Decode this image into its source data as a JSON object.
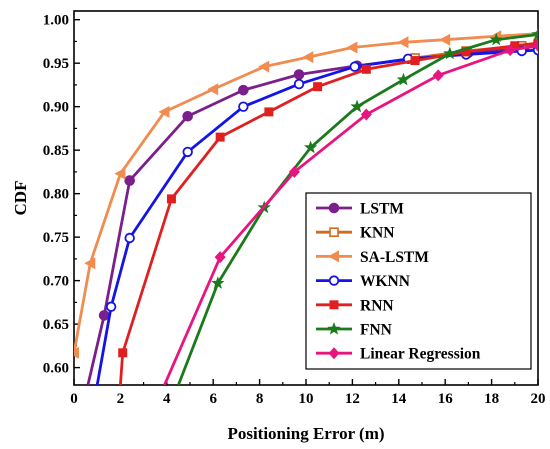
{
  "chart_data": {
    "type": "line",
    "xlabel": "Positioning Error (m)",
    "ylabel": "CDF",
    "xlim": [
      0,
      20
    ],
    "ylim": [
      0.58,
      1.01
    ],
    "x_ticks": [
      "0",
      "2",
      "4",
      "6",
      "8",
      "10",
      "12",
      "14",
      "16",
      "18",
      "20"
    ],
    "y_ticks": [
      "0.60",
      "0.65",
      "0.70",
      "0.75",
      "0.80",
      "0.85",
      "0.90",
      "0.95",
      "1.00"
    ],
    "grid": false,
    "legend_position": "bottom-right",
    "series": [
      {
        "name": "LSTM",
        "color": "#7a1f8c",
        "marker": "circle-filled",
        "x": [
          0.6,
          1.3,
          2.4,
          4.9,
          7.3,
          9.7,
          12.2,
          14.6,
          17.0,
          19.4,
          20.0
        ],
        "y": [
          0.58,
          0.66,
          0.815,
          0.889,
          0.919,
          0.937,
          0.947,
          0.955,
          0.962,
          0.968,
          0.969
        ]
      },
      {
        "name": "KNN",
        "color": "#d26a1e",
        "marker": "square-open",
        "x": [
          14.7,
          16.9,
          19.3,
          20.0
        ],
        "y": [
          0.956,
          0.964,
          0.97,
          0.971
        ]
      },
      {
        "name": "SA-LSTM",
        "color": "#f08c50",
        "marker": "triangle-left",
        "x": [
          0.0,
          0.7,
          2.0,
          3.9,
          6.0,
          8.2,
          10.1,
          12.0,
          14.2,
          16.0,
          18.2,
          20.0
        ],
        "y": [
          0.617,
          0.72,
          0.823,
          0.894,
          0.92,
          0.946,
          0.957,
          0.968,
          0.974,
          0.977,
          0.981,
          0.984
        ]
      },
      {
        "name": "WKNN",
        "color": "#1414e6",
        "marker": "circle-open",
        "x": [
          1.0,
          1.6,
          2.4,
          4.9,
          7.3,
          9.7,
          12.1,
          14.4,
          16.9,
          19.3,
          20.0
        ],
        "y": [
          0.58,
          0.67,
          0.749,
          0.848,
          0.9,
          0.926,
          0.946,
          0.955,
          0.96,
          0.964,
          0.965
        ]
      },
      {
        "name": "RNN",
        "color": "#e02020",
        "marker": "square-filled",
        "x": [
          2.0,
          2.1,
          4.2,
          6.3,
          8.4,
          10.5,
          12.6,
          14.7,
          16.9,
          19.0,
          20.0
        ],
        "y": [
          0.58,
          0.617,
          0.794,
          0.865,
          0.894,
          0.923,
          0.943,
          0.953,
          0.963,
          0.97,
          0.973
        ]
      },
      {
        "name": "FNN",
        "color": "#1b7a1b",
        "marker": "star",
        "x": [
          4.5,
          6.2,
          8.2,
          10.2,
          12.2,
          14.2,
          16.2,
          18.2,
          20.0
        ],
        "y": [
          0.58,
          0.697,
          0.784,
          0.853,
          0.9,
          0.931,
          0.961,
          0.977,
          0.983
        ]
      },
      {
        "name": "Linear Regression",
        "color": "#e8157f",
        "marker": "diamond",
        "x": [
          3.9,
          6.3,
          9.5,
          12.6,
          15.7,
          18.8,
          20.0
        ],
        "y": [
          0.58,
          0.727,
          0.825,
          0.891,
          0.936,
          0.965,
          0.97
        ]
      }
    ]
  }
}
